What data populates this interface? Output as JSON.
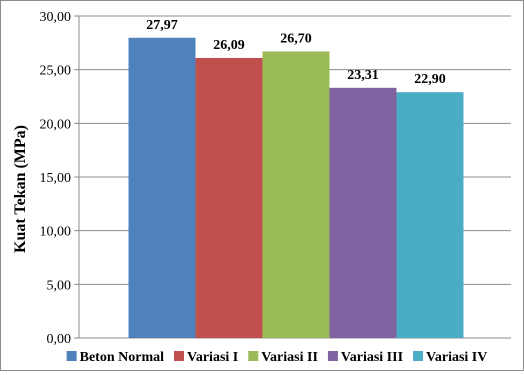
{
  "chart_data": {
    "type": "bar",
    "title": "",
    "xlabel": "",
    "ylabel": "Kuat Tekan  (MPa)",
    "ylim": [
      0,
      30
    ],
    "ytick_step": 5,
    "ytick_labels": [
      "0,00",
      "5,00",
      "10,00",
      "15,00",
      "20,00",
      "25,00",
      "30,00"
    ],
    "grid": true,
    "legend_position": "bottom",
    "categories": [
      "Beton Normal",
      "Variasi I",
      "Variasi II",
      "Variasi III",
      "Variasi IV"
    ],
    "values": [
      27.97,
      26.09,
      26.7,
      23.31,
      22.9
    ],
    "value_labels": [
      "27,97",
      "26,09",
      "26,70",
      "23,31",
      "22,90"
    ],
    "colors": [
      "#4F81BD",
      "#C0504D",
      "#9BBB59",
      "#8064A2",
      "#4BACC6"
    ]
  }
}
